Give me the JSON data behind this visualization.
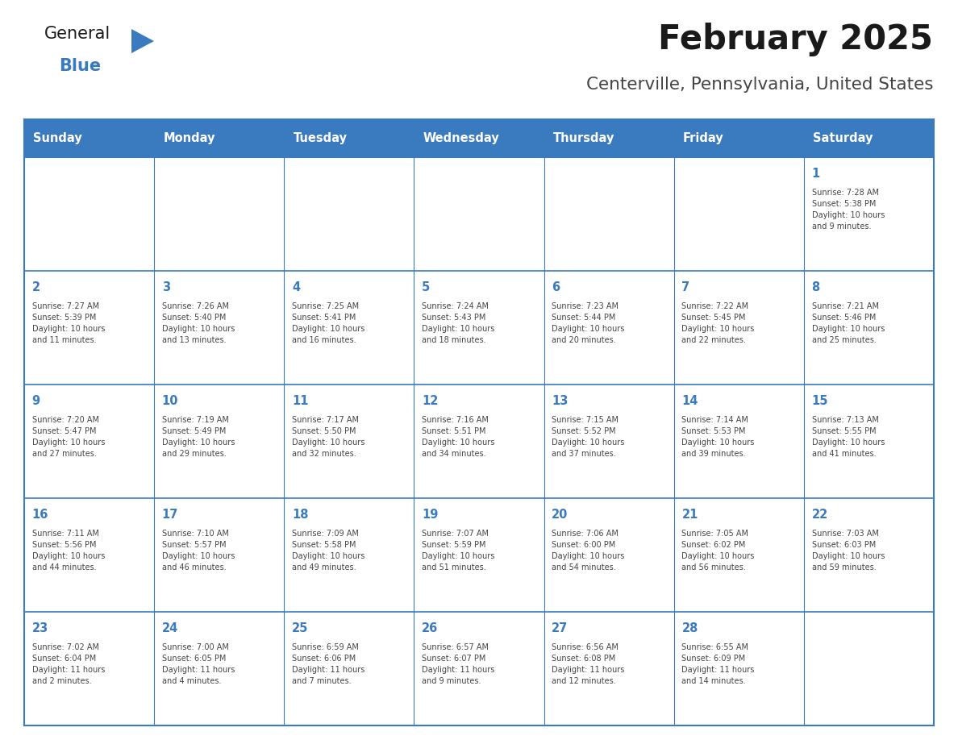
{
  "title": "February 2025",
  "subtitle": "Centerville, Pennsylvania, United States",
  "header_bg": "#3a7abf",
  "header_text_color": "#ffffff",
  "border_color": "#3a7abf",
  "cell_bg": "#ffffff",
  "day_headers": [
    "Sunday",
    "Monday",
    "Tuesday",
    "Wednesday",
    "Thursday",
    "Friday",
    "Saturday"
  ],
  "title_color": "#1a1a1a",
  "subtitle_color": "#444444",
  "day_num_color": "#3a7abf",
  "cell_text_color": "#444444",
  "logo_general_color": "#1a1a1a",
  "logo_blue_color": "#3a7abf",
  "weeks": [
    [
      {
        "day": null,
        "info": null
      },
      {
        "day": null,
        "info": null
      },
      {
        "day": null,
        "info": null
      },
      {
        "day": null,
        "info": null
      },
      {
        "day": null,
        "info": null
      },
      {
        "day": null,
        "info": null
      },
      {
        "day": 1,
        "info": "Sunrise: 7:28 AM\nSunset: 5:38 PM\nDaylight: 10 hours\nand 9 minutes."
      }
    ],
    [
      {
        "day": 2,
        "info": "Sunrise: 7:27 AM\nSunset: 5:39 PM\nDaylight: 10 hours\nand 11 minutes."
      },
      {
        "day": 3,
        "info": "Sunrise: 7:26 AM\nSunset: 5:40 PM\nDaylight: 10 hours\nand 13 minutes."
      },
      {
        "day": 4,
        "info": "Sunrise: 7:25 AM\nSunset: 5:41 PM\nDaylight: 10 hours\nand 16 minutes."
      },
      {
        "day": 5,
        "info": "Sunrise: 7:24 AM\nSunset: 5:43 PM\nDaylight: 10 hours\nand 18 minutes."
      },
      {
        "day": 6,
        "info": "Sunrise: 7:23 AM\nSunset: 5:44 PM\nDaylight: 10 hours\nand 20 minutes."
      },
      {
        "day": 7,
        "info": "Sunrise: 7:22 AM\nSunset: 5:45 PM\nDaylight: 10 hours\nand 22 minutes."
      },
      {
        "day": 8,
        "info": "Sunrise: 7:21 AM\nSunset: 5:46 PM\nDaylight: 10 hours\nand 25 minutes."
      }
    ],
    [
      {
        "day": 9,
        "info": "Sunrise: 7:20 AM\nSunset: 5:47 PM\nDaylight: 10 hours\nand 27 minutes."
      },
      {
        "day": 10,
        "info": "Sunrise: 7:19 AM\nSunset: 5:49 PM\nDaylight: 10 hours\nand 29 minutes."
      },
      {
        "day": 11,
        "info": "Sunrise: 7:17 AM\nSunset: 5:50 PM\nDaylight: 10 hours\nand 32 minutes."
      },
      {
        "day": 12,
        "info": "Sunrise: 7:16 AM\nSunset: 5:51 PM\nDaylight: 10 hours\nand 34 minutes."
      },
      {
        "day": 13,
        "info": "Sunrise: 7:15 AM\nSunset: 5:52 PM\nDaylight: 10 hours\nand 37 minutes."
      },
      {
        "day": 14,
        "info": "Sunrise: 7:14 AM\nSunset: 5:53 PM\nDaylight: 10 hours\nand 39 minutes."
      },
      {
        "day": 15,
        "info": "Sunrise: 7:13 AM\nSunset: 5:55 PM\nDaylight: 10 hours\nand 41 minutes."
      }
    ],
    [
      {
        "day": 16,
        "info": "Sunrise: 7:11 AM\nSunset: 5:56 PM\nDaylight: 10 hours\nand 44 minutes."
      },
      {
        "day": 17,
        "info": "Sunrise: 7:10 AM\nSunset: 5:57 PM\nDaylight: 10 hours\nand 46 minutes."
      },
      {
        "day": 18,
        "info": "Sunrise: 7:09 AM\nSunset: 5:58 PM\nDaylight: 10 hours\nand 49 minutes."
      },
      {
        "day": 19,
        "info": "Sunrise: 7:07 AM\nSunset: 5:59 PM\nDaylight: 10 hours\nand 51 minutes."
      },
      {
        "day": 20,
        "info": "Sunrise: 7:06 AM\nSunset: 6:00 PM\nDaylight: 10 hours\nand 54 minutes."
      },
      {
        "day": 21,
        "info": "Sunrise: 7:05 AM\nSunset: 6:02 PM\nDaylight: 10 hours\nand 56 minutes."
      },
      {
        "day": 22,
        "info": "Sunrise: 7:03 AM\nSunset: 6:03 PM\nDaylight: 10 hours\nand 59 minutes."
      }
    ],
    [
      {
        "day": 23,
        "info": "Sunrise: 7:02 AM\nSunset: 6:04 PM\nDaylight: 11 hours\nand 2 minutes."
      },
      {
        "day": 24,
        "info": "Sunrise: 7:00 AM\nSunset: 6:05 PM\nDaylight: 11 hours\nand 4 minutes."
      },
      {
        "day": 25,
        "info": "Sunrise: 6:59 AM\nSunset: 6:06 PM\nDaylight: 11 hours\nand 7 minutes."
      },
      {
        "day": 26,
        "info": "Sunrise: 6:57 AM\nSunset: 6:07 PM\nDaylight: 11 hours\nand 9 minutes."
      },
      {
        "day": 27,
        "info": "Sunrise: 6:56 AM\nSunset: 6:08 PM\nDaylight: 11 hours\nand 12 minutes."
      },
      {
        "day": 28,
        "info": "Sunrise: 6:55 AM\nSunset: 6:09 PM\nDaylight: 11 hours\nand 14 minutes."
      },
      {
        "day": null,
        "info": null
      }
    ]
  ]
}
